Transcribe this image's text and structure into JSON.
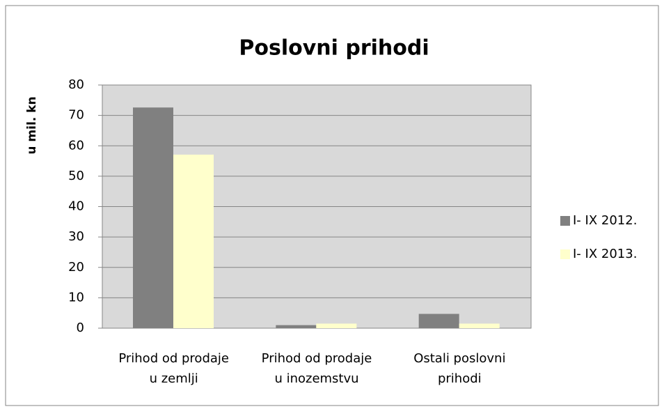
{
  "chart_data": {
    "type": "bar",
    "title": "Poslovni prihodi",
    "y_label": "u mil. kn",
    "categories": [
      [
        "Prihod od prodaje",
        "u zemlji"
      ],
      [
        "Prihod od prodaje",
        "u inozemstvu"
      ],
      [
        "Ostali poslovni",
        "prihodi"
      ]
    ],
    "series": [
      {
        "name": "I- IX 2012.",
        "color": "#808080",
        "values": [
          72.6,
          1.0,
          4.7
        ]
      },
      {
        "name": "I- IX 2013.",
        "color": "#ffffcc",
        "values": [
          57.1,
          1.5,
          1.5
        ]
      }
    ],
    "ylim": [
      0,
      80
    ],
    "yticks": [
      0,
      10,
      20,
      30,
      40,
      50,
      60,
      70,
      80
    ],
    "grid": true,
    "legend": "right",
    "plot_background": "#d9d9d9"
  }
}
